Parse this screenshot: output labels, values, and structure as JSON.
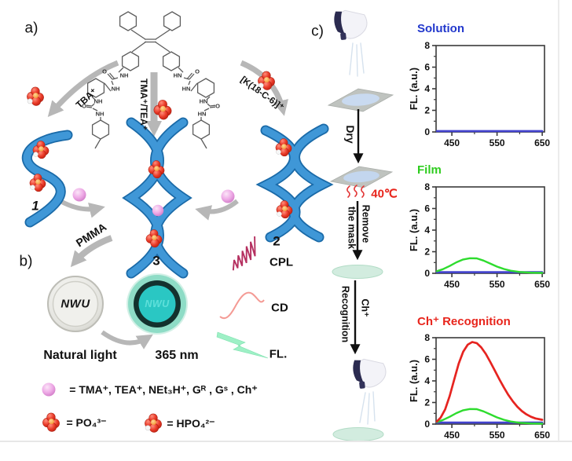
{
  "figure": {
    "panel_a_label": "a)",
    "panel_b_label": "b)",
    "panel_c_label": "c)",
    "arrows": {
      "tba": "TBA⁺",
      "tma_tea": "TMA⁺/TEA⁺",
      "k18c6": "[K(18-C-6)]⁺",
      "pmma": "PMMA"
    },
    "assemblies": {
      "one": "1",
      "two": "2",
      "three": "3"
    },
    "signals": {
      "cpl": "CPL",
      "cd": "CD",
      "fl": "FL."
    },
    "discs": {
      "logo_left": "NWU",
      "logo_right": "NWU",
      "caption_left": "Natural light",
      "caption_right": "365 nm"
    },
    "structure_labels": {
      "nh": "NH",
      "hn": "HN",
      "o": "O"
    }
  },
  "legend": {
    "cations": "= TMA⁺, TEA⁺, NEt₃H⁺, Gᴿ , Gˢ , Ch⁺",
    "po4": "= PO₄³⁻",
    "hpo4": "= HPO₄²⁻"
  },
  "process": {
    "dry": "Dry",
    "temperature": "40℃",
    "remove_line1": "Remove",
    "remove_line2": "the mask",
    "recognition": "Recognition",
    "cation": "Ch⁺"
  },
  "colors": {
    "helix_blue": "#3f97d7",
    "phosphate_red": "#e5372b",
    "cation_pink": "#eeb0e8",
    "solution_blue": "#2238cc",
    "film_green": "#2ecc1e",
    "recognition_red": "#e8251c"
  },
  "chart_data": [
    {
      "type": "line",
      "title": "Solution",
      "title_color": "#2238cc",
      "xlim": [
        415,
        655
      ],
      "ylim": [
        0,
        8
      ],
      "xticks": [
        450,
        550,
        650
      ],
      "xticks_minor": [
        500,
        600
      ],
      "yticks": [
        0,
        2,
        4,
        6,
        8
      ],
      "yticks_minor": [
        1,
        3,
        5,
        7
      ],
      "ylabel": "FL. (a.u.)",
      "grid": false,
      "legend_position": "none",
      "series": [
        {
          "name": "solution",
          "color": "#4343cf",
          "width": 2.6,
          "points": [
            [
              417,
              0.08
            ],
            [
              650,
              0.08
            ]
          ]
        }
      ]
    },
    {
      "type": "line",
      "title": "Film",
      "title_color": "#2ecc1e",
      "xlim": [
        415,
        655
      ],
      "ylim": [
        0,
        8
      ],
      "xticks": [
        450,
        550,
        650
      ],
      "xticks_minor": [
        500,
        600
      ],
      "yticks": [
        0,
        2,
        4,
        6,
        8
      ],
      "yticks_minor": [
        1,
        3,
        5,
        7
      ],
      "ylabel": "FL. (a.u.)",
      "grid": false,
      "legend_position": "none",
      "series": [
        {
          "name": "solution",
          "color": "#4343cf",
          "width": 2.6,
          "points": [
            [
              417,
              0.1
            ],
            [
              650,
              0.1
            ]
          ]
        },
        {
          "name": "film",
          "color": "#2edc2e",
          "width": 2.4,
          "points": [
            [
              417,
              0.2
            ],
            [
              430,
              0.38
            ],
            [
              445,
              0.68
            ],
            [
              460,
              1.02
            ],
            [
              475,
              1.28
            ],
            [
              490,
              1.4
            ],
            [
              505,
              1.38
            ],
            [
              520,
              1.18
            ],
            [
              535,
              0.9
            ],
            [
              550,
              0.62
            ],
            [
              565,
              0.4
            ],
            [
              580,
              0.24
            ],
            [
              600,
              0.12
            ],
            [
              625,
              0.06
            ],
            [
              650,
              0.04
            ]
          ]
        }
      ]
    },
    {
      "type": "line",
      "title": "Ch⁺ Recognition",
      "title_color": "#e8251c",
      "xlim": [
        415,
        655
      ],
      "ylim": [
        0,
        8
      ],
      "xticks": [
        450,
        550,
        650
      ],
      "xticks_minor": [
        500,
        600
      ],
      "yticks": [
        0,
        2,
        4,
        6,
        8
      ],
      "yticks_minor": [
        1,
        3,
        5,
        7
      ],
      "ylabel": "FL. (a.u.)",
      "grid": false,
      "legend_position": "none",
      "series": [
        {
          "name": "solution",
          "color": "#4343cf",
          "width": 2.6,
          "points": [
            [
              417,
              0.14
            ],
            [
              650,
              0.14
            ]
          ]
        },
        {
          "name": "film",
          "color": "#2edc2e",
          "width": 2.4,
          "points": [
            [
              417,
              0.2
            ],
            [
              430,
              0.38
            ],
            [
              445,
              0.68
            ],
            [
              460,
              1.02
            ],
            [
              475,
              1.28
            ],
            [
              490,
              1.4
            ],
            [
              505,
              1.38
            ],
            [
              520,
              1.18
            ],
            [
              535,
              0.9
            ],
            [
              550,
              0.62
            ],
            [
              565,
              0.4
            ],
            [
              580,
              0.24
            ],
            [
              600,
              0.12
            ],
            [
              625,
              0.06
            ],
            [
              650,
              0.04
            ]
          ]
        },
        {
          "name": "ch_recognition",
          "color": "#e62420",
          "width": 2.7,
          "points": [
            [
              417,
              0.25
            ],
            [
              425,
              0.6
            ],
            [
              435,
              1.35
            ],
            [
              445,
              2.6
            ],
            [
              455,
              4.1
            ],
            [
              465,
              5.6
            ],
            [
              475,
              6.7
            ],
            [
              485,
              7.35
            ],
            [
              495,
              7.6
            ],
            [
              505,
              7.5
            ],
            [
              515,
              7.1
            ],
            [
              525,
              6.5
            ],
            [
              535,
              5.75
            ],
            [
              545,
              4.95
            ],
            [
              555,
              4.15
            ],
            [
              565,
              3.4
            ],
            [
              575,
              2.7
            ],
            [
              585,
              2.1
            ],
            [
              595,
              1.6
            ],
            [
              605,
              1.2
            ],
            [
              615,
              0.9
            ],
            [
              625,
              0.68
            ],
            [
              635,
              0.52
            ],
            [
              650,
              0.4
            ]
          ]
        }
      ]
    }
  ]
}
